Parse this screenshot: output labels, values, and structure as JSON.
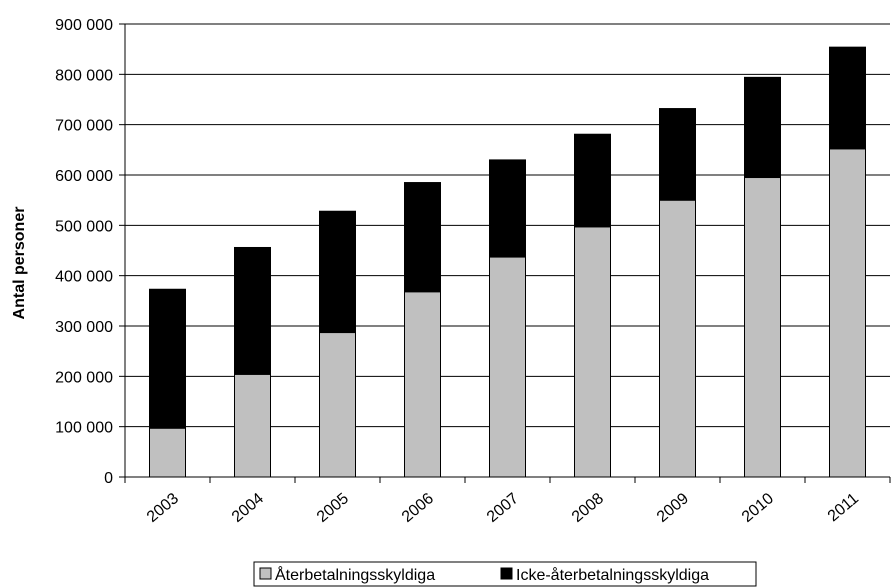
{
  "chart_data": {
    "type": "bar",
    "stacked": true,
    "categories": [
      "2003",
      "2004",
      "2005",
      "2006",
      "2007",
      "2008",
      "2009",
      "2010",
      "2011"
    ],
    "series": [
      {
        "name": "Återbetalningsskyldiga",
        "color": "#c0c0c0",
        "values": [
          97000,
          204000,
          287000,
          368000,
          437000,
          497000,
          550000,
          595000,
          652000
        ]
      },
      {
        "name": "Icke-återbetalningsskyldiga",
        "color": "#000000",
        "values": [
          276000,
          252000,
          241000,
          217000,
          193000,
          184000,
          182000,
          199000,
          202000
        ]
      }
    ],
    "ylabel": "Antal personer",
    "xlabel": "",
    "ylim": [
      0,
      900000
    ],
    "yticks": [
      0,
      100000,
      200000,
      300000,
      400000,
      500000,
      600000,
      700000,
      800000,
      900000
    ],
    "ytick_labels": [
      "0",
      "100 000",
      "200 000",
      "300 000",
      "400 000",
      "500 000",
      "600 000",
      "700 000",
      "800 000",
      "900 000"
    ],
    "grid": true,
    "legend_position": "bottom"
  }
}
